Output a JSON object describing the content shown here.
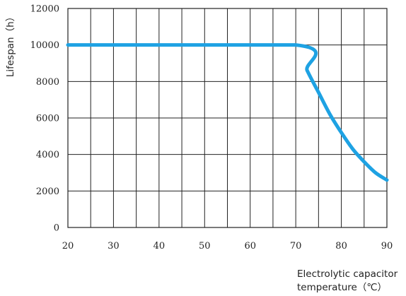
{
  "chart_data": {
    "type": "line",
    "xlabel_lines": [
      "Electrolytic capacitor",
      "temperature（℃）"
    ],
    "ylabel": "Lifespan（h）",
    "xlim": [
      20,
      90
    ],
    "ylim": [
      0,
      12000
    ],
    "x_ticks": [
      20,
      30,
      40,
      50,
      60,
      70,
      80,
      90
    ],
    "y_ticks": [
      0,
      2000,
      4000,
      6000,
      8000,
      10000,
      12000
    ],
    "x_grid": [
      20,
      25,
      30,
      35,
      40,
      45,
      50,
      55,
      60,
      65,
      70,
      75,
      80,
      85,
      90
    ],
    "y_grid": [
      0,
      2000,
      4000,
      6000,
      8000,
      10000,
      12000
    ],
    "grid": true,
    "legend": "none",
    "series": [
      {
        "color": "#1ea2e3",
        "x": [
          20,
          70,
          72.5,
          75,
          77.5,
          80,
          82.5,
          85,
          87.5,
          90
        ],
        "y": [
          10000,
          10000,
          8600,
          7400,
          6200,
          5200,
          4300,
          3600,
          3000,
          2600
        ]
      }
    ]
  }
}
